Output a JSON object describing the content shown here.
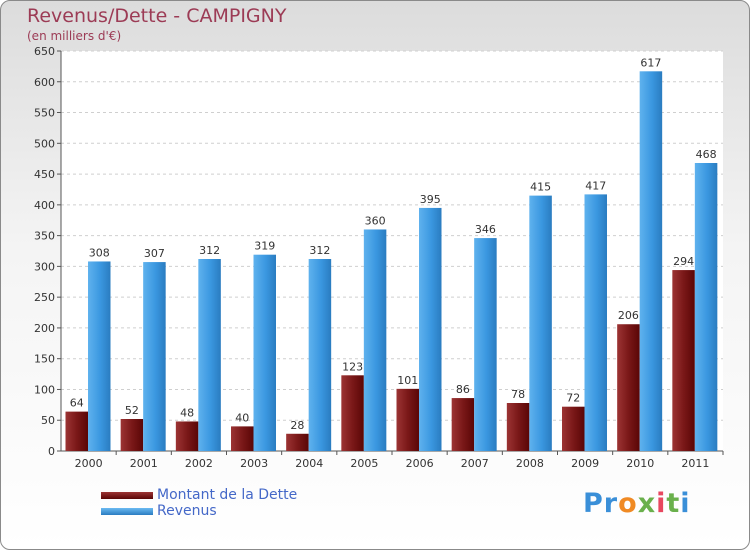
{
  "chart_data": {
    "type": "bar",
    "title": "Revenus/Dette - CAMPIGNY",
    "subtitle": "(en milliers d'€)",
    "xlabel": "",
    "ylabel": "",
    "categories": [
      "2000",
      "2001",
      "2002",
      "2003",
      "2004",
      "2005",
      "2006",
      "2007",
      "2008",
      "2009",
      "2010",
      "2011"
    ],
    "series": [
      {
        "name": "Montant de la Dette",
        "color": "#7a1414",
        "values": [
          64,
          52,
          48,
          40,
          28,
          123,
          101,
          86,
          78,
          72,
          206,
          294
        ]
      },
      {
        "name": "Revenus",
        "color": "#3a97e0",
        "values": [
          308,
          307,
          312,
          319,
          312,
          360,
          395,
          346,
          415,
          417,
          617,
          468
        ]
      }
    ],
    "ylim": [
      0,
      650
    ],
    "yticks": [
      0,
      50,
      100,
      150,
      200,
      250,
      300,
      350,
      400,
      450,
      500,
      550,
      600,
      650
    ],
    "grid": true,
    "legend": "bottom-left"
  },
  "logo": {
    "letters": [
      "P",
      "r",
      "o",
      "x",
      "i",
      "t",
      "i"
    ],
    "colors": [
      "#3a8fd8",
      "#3a8fd8",
      "#f08a24",
      "#6ab04c",
      "#e8475f",
      "#6ab04c",
      "#3a8fd8"
    ]
  }
}
